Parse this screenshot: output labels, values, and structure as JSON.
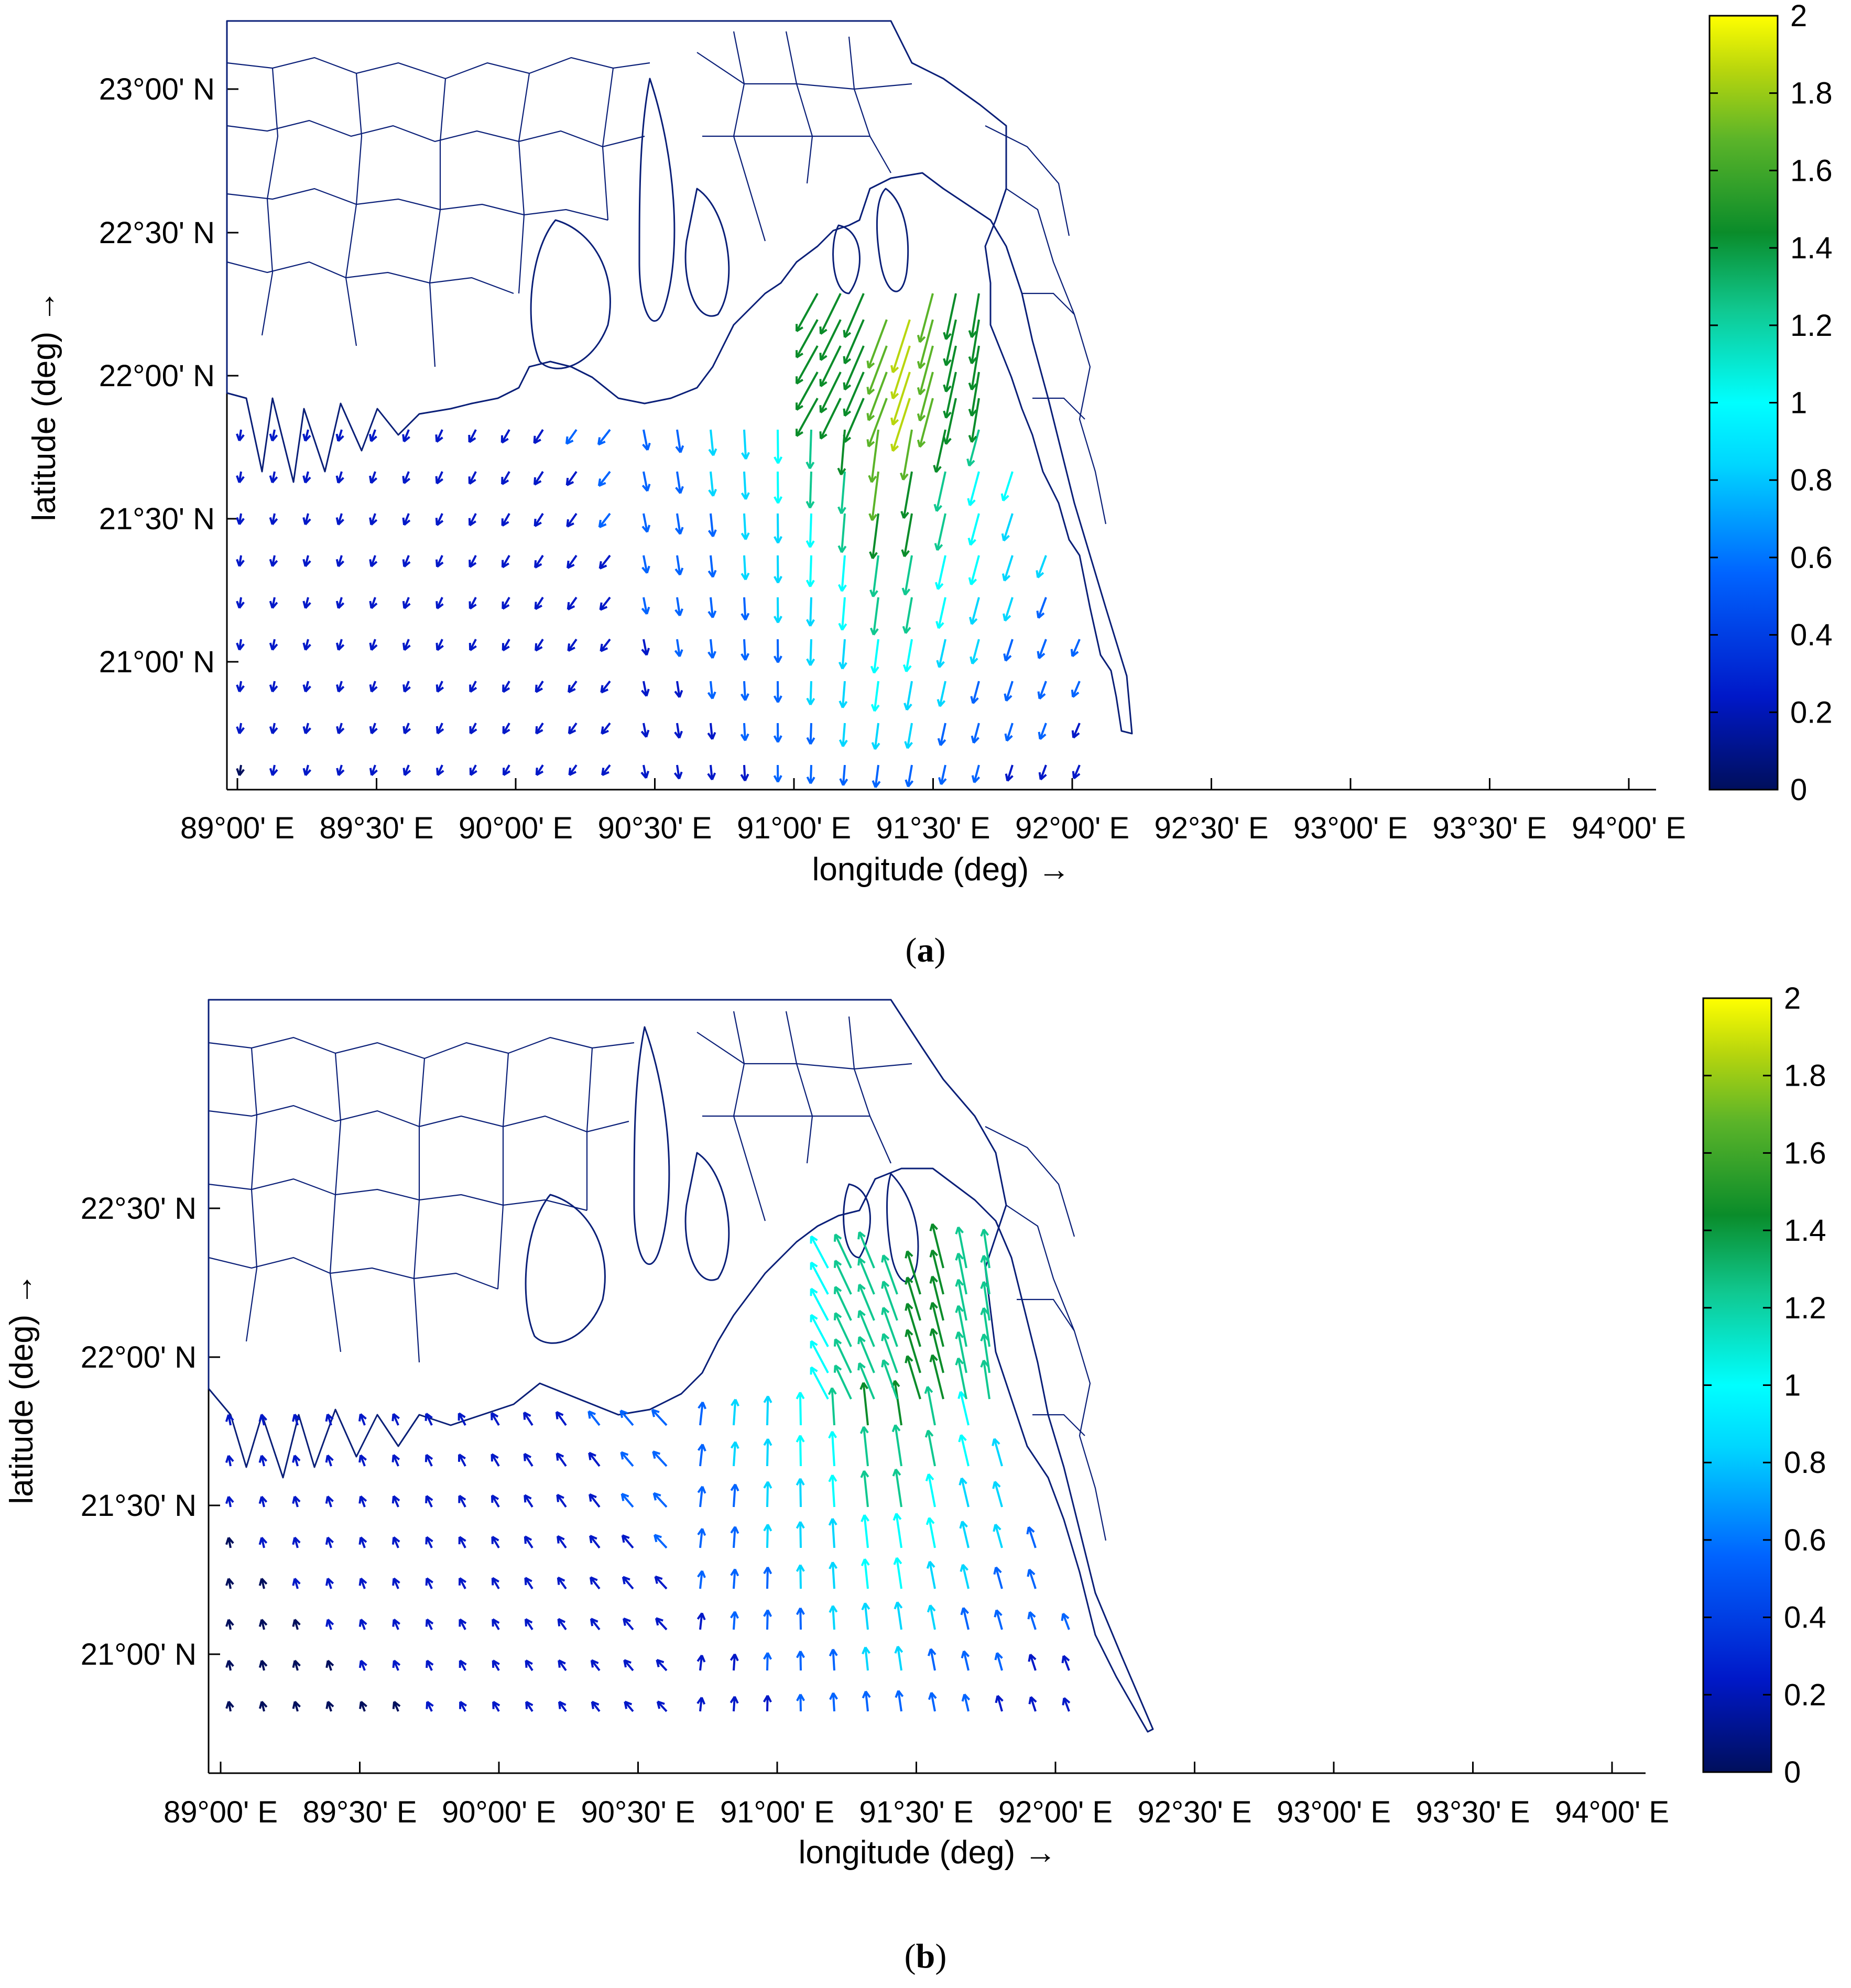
{
  "colorbar": {
    "ticks": [
      "0",
      "0.2",
      "0.4",
      "0.6",
      "0.8",
      "1",
      "1.2",
      "1.4",
      "1.6",
      "1.8",
      "2"
    ],
    "range": [
      0,
      2
    ],
    "colormap": "jet-like (dark blue → blue → cyan → green → yellow)",
    "colors": [
      "#000f5c",
      "#0018c8",
      "#0064ff",
      "#00d6ff",
      "#00ffff",
      "#10c890",
      "#0a8c2a",
      "#5bb429",
      "#b8d60d",
      "#ffff00"
    ]
  },
  "panels": [
    {
      "id": "a",
      "caption_open": "(",
      "caption_letter": "a",
      "caption_close": ")",
      "xlabel": "longitude (deg) →",
      "ylabel": "latitude (deg) →",
      "xticks": [
        "89°00' E",
        "89°30' E",
        "90°00' E",
        "90°30' E",
        "91°00' E",
        "91°30' E",
        "92°00' E",
        "92°30' E",
        "93°00' E",
        "93°30' E",
        "94°00' E"
      ],
      "yticks": [
        "21°00' N",
        "21°30' N",
        "22°00' N",
        "22°30' N",
        "23°00' N"
      ]
    },
    {
      "id": "b",
      "caption_open": "(",
      "caption_letter": "b",
      "caption_close": ")",
      "xlabel": "longitude (deg) →",
      "ylabel": "latitude (deg) →",
      "xticks": [
        "89°00' E",
        "89°30' E",
        "90°00' E",
        "90°30' E",
        "91°00' E",
        "91°30' E",
        "92°00' E",
        "92°30' E",
        "93°00' E",
        "93°30' E",
        "94°00' E"
      ],
      "yticks": [
        "21°00' N",
        "21°30' N",
        "22°00' N",
        "22°30' N"
      ]
    }
  ]
}
